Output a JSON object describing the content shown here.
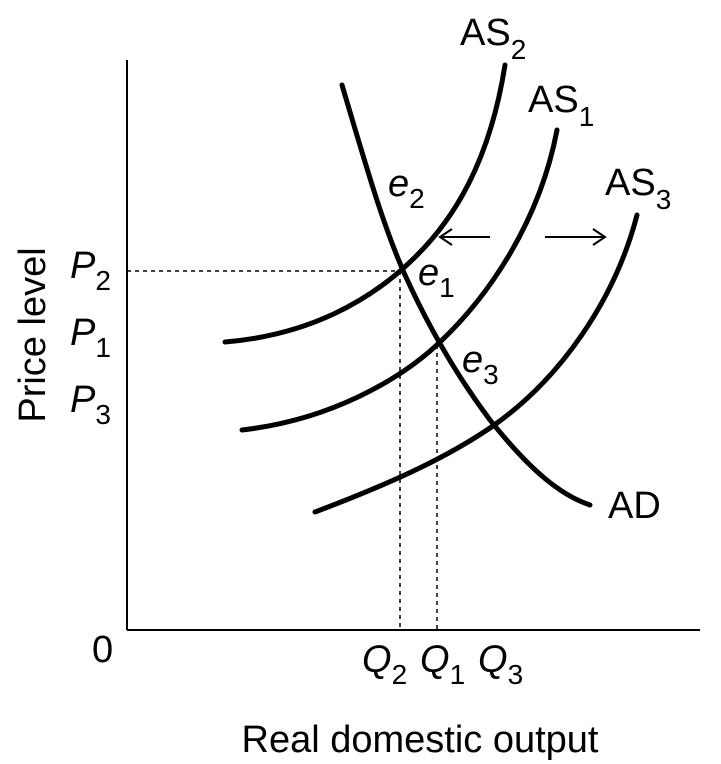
{
  "axes": {
    "y_label": "Price level",
    "x_label": "Real domestic output",
    "origin": "0"
  },
  "curves": [
    {
      "label": "AS",
      "sub": "2"
    },
    {
      "label": "AS",
      "sub": "1"
    },
    {
      "label": "AS",
      "sub": "3"
    },
    {
      "label": "AD"
    }
  ],
  "points": [
    {
      "label": "e",
      "sub": "2"
    },
    {
      "label": "e",
      "sub": "1"
    },
    {
      "label": "e",
      "sub": "3"
    }
  ],
  "price_levels": [
    {
      "label": "P",
      "sub": "2"
    },
    {
      "label": "P",
      "sub": "1"
    },
    {
      "label": "P",
      "sub": "3"
    }
  ],
  "quantities": [
    {
      "label": "Q",
      "sub": "2"
    },
    {
      "label": "Q",
      "sub": "1"
    },
    {
      "label": "Q",
      "sub": "3"
    }
  ]
}
